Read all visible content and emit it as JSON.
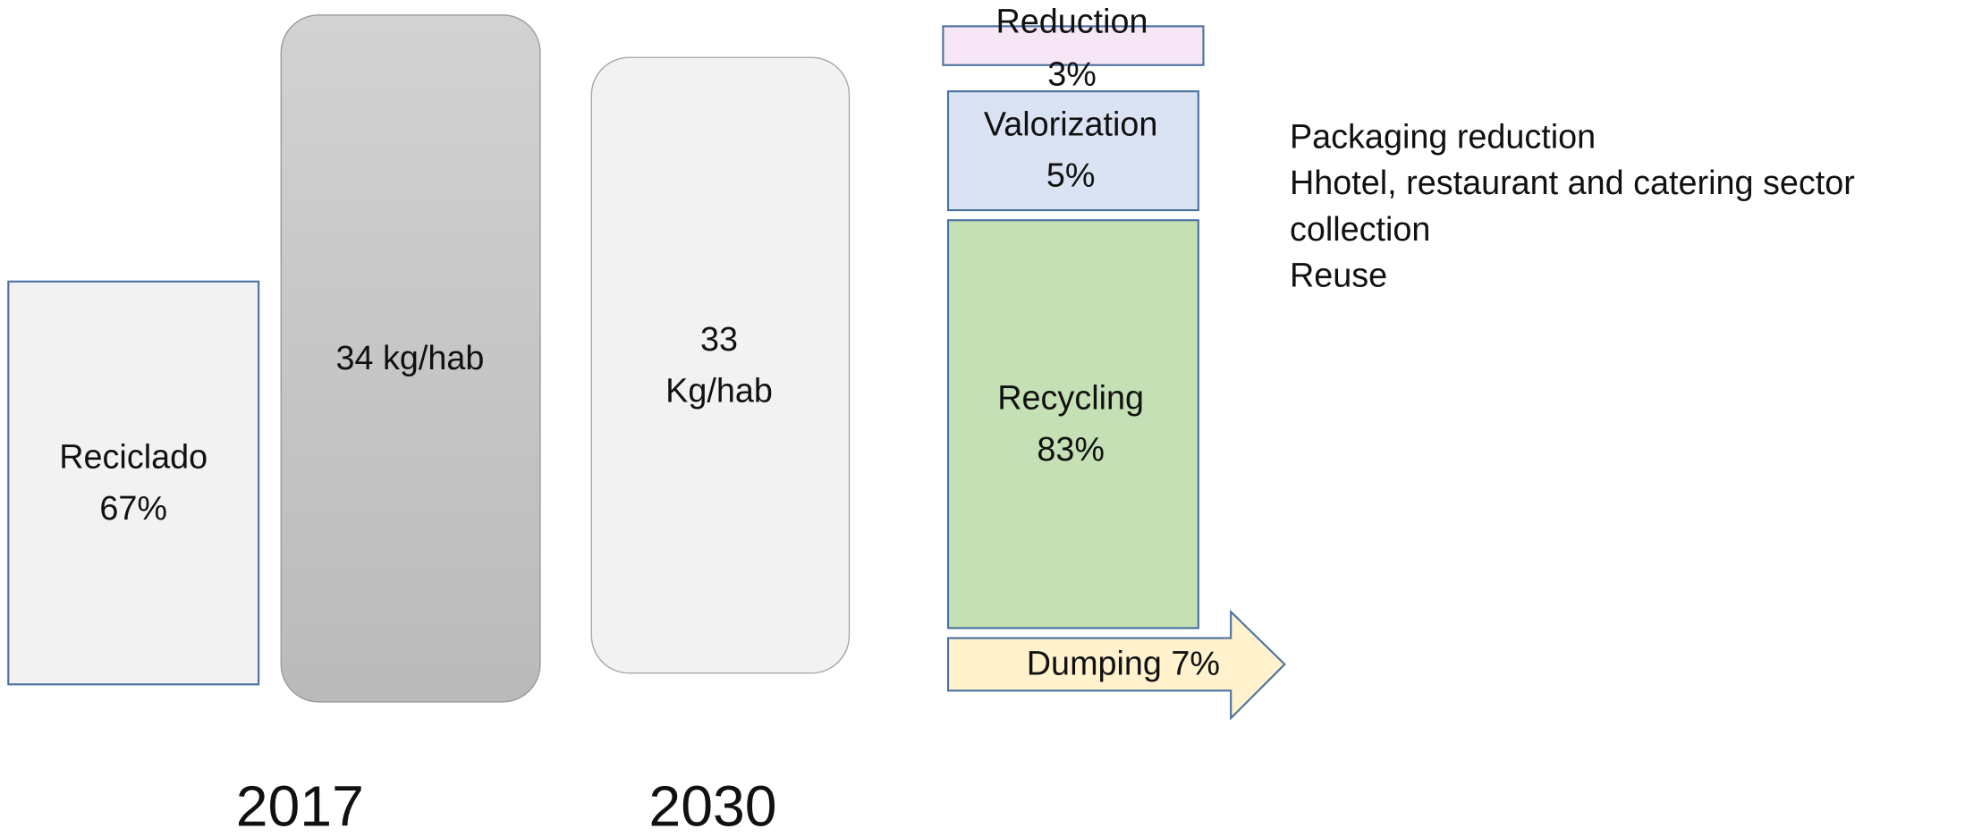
{
  "left_box": {
    "lines": [
      "Reciclado",
      "67%"
    ]
  },
  "bar_2017": {
    "lines": [
      "34 kg/hab"
    ]
  },
  "bar_2030": {
    "lines": [
      "33",
      "Kg/hab"
    ]
  },
  "reduction": {
    "lines": [
      "Reduction",
      "3%"
    ]
  },
  "valorization": {
    "lines": [
      "Valorization",
      "5%"
    ]
  },
  "recycling": {
    "lines": [
      "Recycling",
      "83%"
    ]
  },
  "dumping": {
    "lines": [
      "Dumping 7%"
    ]
  },
  "notes": [
    "Packaging reduction",
    "Hhotel, restaurant and catering sector",
    "collection",
    "Reuse"
  ],
  "years": [
    "2017",
    "2030"
  ]
}
